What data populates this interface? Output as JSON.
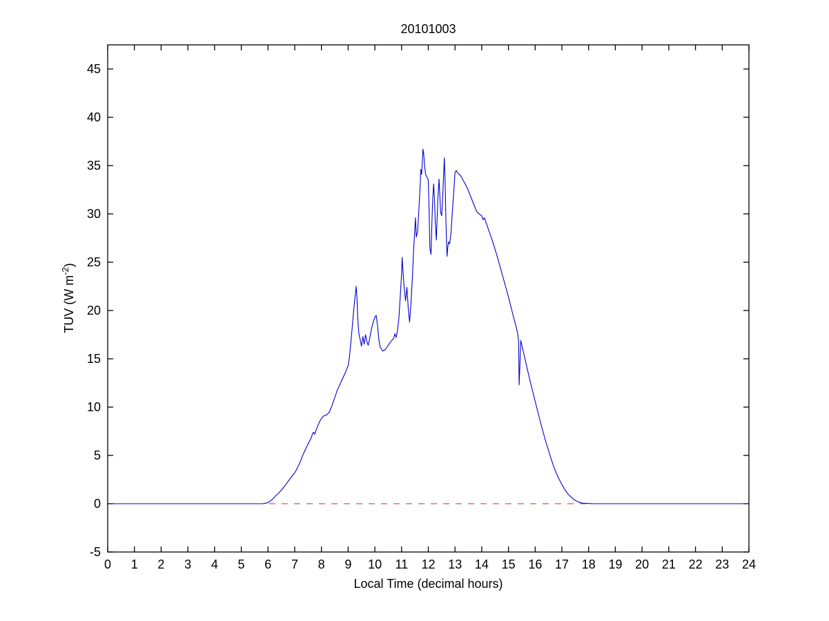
{
  "figure": {
    "title": "20101003",
    "xlabel": "Local Time (decimal hours)",
    "ylabel_pre": "TUV (W m",
    "ylabel_sup": "-2",
    "ylabel_post": ")"
  },
  "chart_data": {
    "type": "line",
    "title": "20101003",
    "xlabel": "Local Time (decimal hours)",
    "ylabel": "TUV (W m^-2)",
    "xlim": [
      0,
      24
    ],
    "ylim": [
      -5,
      47.5
    ],
    "xticks": [
      0,
      1,
      2,
      3,
      4,
      5,
      6,
      7,
      8,
      9,
      10,
      11,
      12,
      13,
      14,
      15,
      16,
      17,
      18,
      19,
      20,
      21,
      22,
      23,
      24
    ],
    "yticks": [
      -5,
      0,
      5,
      10,
      15,
      20,
      25,
      30,
      35,
      40,
      45
    ],
    "grid": false,
    "legend_position": "none",
    "colors": {
      "data_line": "#0000cc",
      "zero_line": "#dd2222",
      "axis": "#000000"
    },
    "series": [
      {
        "name": "zero-reference",
        "color": "#dd2222",
        "style": "dashed",
        "points": [
          [
            0,
            0
          ],
          [
            24,
            0
          ]
        ]
      },
      {
        "name": "TUV",
        "color": "#0000cc",
        "style": "solid",
        "points": [
          [
            0,
            0
          ],
          [
            5.8,
            0
          ],
          [
            5.9,
            0.05
          ],
          [
            6.0,
            0.12
          ],
          [
            6.1,
            0.3
          ],
          [
            6.2,
            0.55
          ],
          [
            6.3,
            0.85
          ],
          [
            6.4,
            1.1
          ],
          [
            6.5,
            1.4
          ],
          [
            6.6,
            1.75
          ],
          [
            6.7,
            2.1
          ],
          [
            6.8,
            2.5
          ],
          [
            6.9,
            2.85
          ],
          [
            7.0,
            3.2
          ],
          [
            7.1,
            3.7
          ],
          [
            7.2,
            4.3
          ],
          [
            7.3,
            5.0
          ],
          [
            7.4,
            5.6
          ],
          [
            7.5,
            6.2
          ],
          [
            7.6,
            6.7
          ],
          [
            7.65,
            7.1
          ],
          [
            7.7,
            7.4
          ],
          [
            7.75,
            7.2
          ],
          [
            7.8,
            7.6
          ],
          [
            7.85,
            8.0
          ],
          [
            7.9,
            8.3
          ],
          [
            7.95,
            8.6
          ],
          [
            8.0,
            8.8
          ],
          [
            8.05,
            9.0
          ],
          [
            8.1,
            9.1
          ],
          [
            8.2,
            9.2
          ],
          [
            8.3,
            9.5
          ],
          [
            8.4,
            10.2
          ],
          [
            8.5,
            11.0
          ],
          [
            8.6,
            11.8
          ],
          [
            8.7,
            12.4
          ],
          [
            8.8,
            13.0
          ],
          [
            8.9,
            13.6
          ],
          [
            9.0,
            14.3
          ],
          [
            9.05,
            15.2
          ],
          [
            9.1,
            16.6
          ],
          [
            9.15,
            18.2
          ],
          [
            9.2,
            19.8
          ],
          [
            9.25,
            21.2
          ],
          [
            9.3,
            22.5
          ],
          [
            9.33,
            21.4
          ],
          [
            9.36,
            19.2
          ],
          [
            9.4,
            17.6
          ],
          [
            9.45,
            17.0
          ],
          [
            9.5,
            16.3
          ],
          [
            9.55,
            17.3
          ],
          [
            9.6,
            16.5
          ],
          [
            9.65,
            17.5
          ],
          [
            9.7,
            16.8
          ],
          [
            9.75,
            16.4
          ],
          [
            9.8,
            17.0
          ],
          [
            9.85,
            17.8
          ],
          [
            9.9,
            18.4
          ],
          [
            9.95,
            18.9
          ],
          [
            10.0,
            19.3
          ],
          [
            10.05,
            19.5
          ],
          [
            10.1,
            18.4
          ],
          [
            10.15,
            17.0
          ],
          [
            10.2,
            16.2
          ],
          [
            10.3,
            15.8
          ],
          [
            10.4,
            16.0
          ],
          [
            10.5,
            16.4
          ],
          [
            10.6,
            16.8
          ],
          [
            10.7,
            17.1
          ],
          [
            10.75,
            17.6
          ],
          [
            10.8,
            17.2
          ],
          [
            10.85,
            18.0
          ],
          [
            10.9,
            19.2
          ],
          [
            10.95,
            21.5
          ],
          [
            11.0,
            23.8
          ],
          [
            11.02,
            25.5
          ],
          [
            11.05,
            24.2
          ],
          [
            11.1,
            22.2
          ],
          [
            11.15,
            21.0
          ],
          [
            11.2,
            22.4
          ],
          [
            11.25,
            20.2
          ],
          [
            11.3,
            18.8
          ],
          [
            11.35,
            20.6
          ],
          [
            11.4,
            23.2
          ],
          [
            11.45,
            26.2
          ],
          [
            11.5,
            28.6
          ],
          [
            11.52,
            29.6
          ],
          [
            11.55,
            27.6
          ],
          [
            11.6,
            28.2
          ],
          [
            11.65,
            30.6
          ],
          [
            11.7,
            33.2
          ],
          [
            11.72,
            34.6
          ],
          [
            11.75,
            34.1
          ],
          [
            11.78,
            35.6
          ],
          [
            11.8,
            36.7
          ],
          [
            11.83,
            36.2
          ],
          [
            11.86,
            35.0
          ],
          [
            11.9,
            34.1
          ],
          [
            11.95,
            33.8
          ],
          [
            12.0,
            33.5
          ],
          [
            12.03,
            30.2
          ],
          [
            12.06,
            26.5
          ],
          [
            12.1,
            25.8
          ],
          [
            12.13,
            28.6
          ],
          [
            12.16,
            31.2
          ],
          [
            12.2,
            33.1
          ],
          [
            12.23,
            31.6
          ],
          [
            12.26,
            29.2
          ],
          [
            12.3,
            27.3
          ],
          [
            12.33,
            29.6
          ],
          [
            12.36,
            31.6
          ],
          [
            12.4,
            33.6
          ],
          [
            12.43,
            32.1
          ],
          [
            12.46,
            30.2
          ],
          [
            12.5,
            29.8
          ],
          [
            12.53,
            31.2
          ],
          [
            12.56,
            33.2
          ],
          [
            12.6,
            35.8
          ],
          [
            12.63,
            33.2
          ],
          [
            12.66,
            29.4
          ],
          [
            12.7,
            25.6
          ],
          [
            12.73,
            26.6
          ],
          [
            12.76,
            27.1
          ],
          [
            12.8,
            26.9
          ],
          [
            12.85,
            28.1
          ],
          [
            12.9,
            30.2
          ],
          [
            12.95,
            32.2
          ],
          [
            13.0,
            34.3
          ],
          [
            13.05,
            34.5
          ],
          [
            13.1,
            34.2
          ],
          [
            13.2,
            34.0
          ],
          [
            13.3,
            33.5
          ],
          [
            13.4,
            33.0
          ],
          [
            13.5,
            32.4
          ],
          [
            13.6,
            31.7
          ],
          [
            13.7,
            31.0
          ],
          [
            13.8,
            30.3
          ],
          [
            13.9,
            30.0
          ],
          [
            14.0,
            29.8
          ],
          [
            14.05,
            29.4
          ],
          [
            14.1,
            29.6
          ],
          [
            14.2,
            28.8
          ],
          [
            14.3,
            28.0
          ],
          [
            14.4,
            27.2
          ],
          [
            14.5,
            26.3
          ],
          [
            14.6,
            25.4
          ],
          [
            14.7,
            24.4
          ],
          [
            14.8,
            23.4
          ],
          [
            14.9,
            22.4
          ],
          [
            15.0,
            21.4
          ],
          [
            15.1,
            20.3
          ],
          [
            15.2,
            19.2
          ],
          [
            15.3,
            18.2
          ],
          [
            15.35,
            17.5
          ],
          [
            15.38,
            16.8
          ],
          [
            15.4,
            12.3
          ],
          [
            15.43,
            14.5
          ],
          [
            15.46,
            16.9
          ],
          [
            15.5,
            16.4
          ],
          [
            15.6,
            15.2
          ],
          [
            15.7,
            14.0
          ],
          [
            15.8,
            12.8
          ],
          [
            15.9,
            11.7
          ],
          [
            16.0,
            10.6
          ],
          [
            16.1,
            9.5
          ],
          [
            16.2,
            8.4
          ],
          [
            16.3,
            7.4
          ],
          [
            16.4,
            6.4
          ],
          [
            16.5,
            5.5
          ],
          [
            16.6,
            4.6
          ],
          [
            16.7,
            3.8
          ],
          [
            16.8,
            3.1
          ],
          [
            16.9,
            2.5
          ],
          [
            17.0,
            2.0
          ],
          [
            17.1,
            1.5
          ],
          [
            17.2,
            1.1
          ],
          [
            17.3,
            0.8
          ],
          [
            17.4,
            0.55
          ],
          [
            17.5,
            0.35
          ],
          [
            17.6,
            0.2
          ],
          [
            17.7,
            0.1
          ],
          [
            17.8,
            0.05
          ],
          [
            18.0,
            0.02
          ],
          [
            18.2,
            0
          ],
          [
            24,
            0
          ]
        ]
      }
    ]
  }
}
